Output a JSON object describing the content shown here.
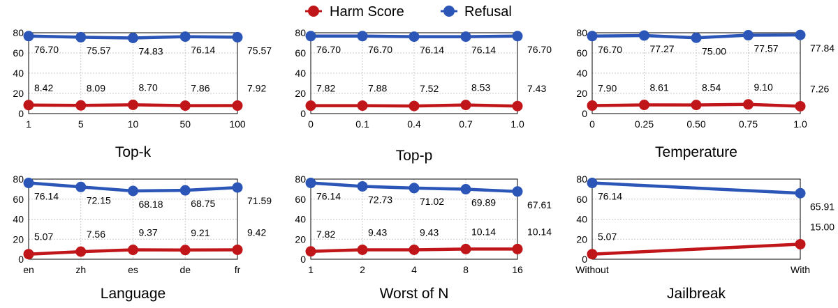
{
  "legend": {
    "items": [
      {
        "label": "Harm Score",
        "color": "#C0161A"
      },
      {
        "label": "Refusal",
        "color": "#2B56B8"
      }
    ]
  },
  "chart_data": [
    {
      "type": "line",
      "title": "Top-k",
      "categories": [
        "1",
        "5",
        "10",
        "50",
        "100"
      ],
      "series": [
        {
          "name": "Refusal",
          "color": "#2B56B8",
          "values": [
            76.7,
            75.57,
            74.83,
            76.14,
            75.57
          ],
          "labels": [
            "76.70",
            "75.57",
            "74.83",
            "76.14",
            "75.57"
          ]
        },
        {
          "name": "Harm Score",
          "color": "#C0161A",
          "values": [
            8.42,
            8.09,
            8.7,
            7.86,
            7.92
          ],
          "labels": [
            "8.42",
            "8.09",
            "8.70",
            "7.86",
            "7.92"
          ]
        }
      ],
      "ylim": [
        0,
        80
      ],
      "yticks": [
        "0",
        "20",
        "40",
        "60",
        "80"
      ],
      "grid": true
    },
    {
      "type": "line",
      "title": "Top-p",
      "categories": [
        "0",
        "0.1",
        "0.4",
        "0.7",
        "1.0"
      ],
      "series": [
        {
          "name": "Refusal",
          "color": "#2B56B8",
          "values": [
            76.7,
            76.7,
            76.14,
            76.14,
            76.7
          ],
          "labels": [
            "76.70",
            "76.70",
            "76.14",
            "76.14",
            "76.70"
          ]
        },
        {
          "name": "Harm Score",
          "color": "#C0161A",
          "values": [
            7.82,
            7.88,
            7.52,
            8.53,
            7.43
          ],
          "labels": [
            "7.82",
            "7.88",
            "7.52",
            "8.53",
            "7.43"
          ]
        }
      ],
      "ylim": [
        0,
        80
      ],
      "yticks": [
        "0",
        "20",
        "40",
        "60",
        "80"
      ],
      "grid": true
    },
    {
      "type": "line",
      "title": "Temperature",
      "categories": [
        "0",
        "0.25",
        "0.50",
        "0.75",
        "1.0"
      ],
      "series": [
        {
          "name": "Refusal",
          "color": "#2B56B8",
          "values": [
            76.7,
            77.27,
            75.0,
            77.57,
            77.84
          ],
          "labels": [
            "76.70",
            "77.27",
            "75.00",
            "77.57",
            "77.84"
          ]
        },
        {
          "name": "Harm Score",
          "color": "#C0161A",
          "values": [
            7.9,
            8.61,
            8.54,
            9.1,
            7.26
          ],
          "labels": [
            "7.90",
            "8.61",
            "8.54",
            "9.10",
            "7.26"
          ]
        }
      ],
      "ylim": [
        0,
        80
      ],
      "yticks": [
        "0",
        "20",
        "40",
        "60",
        "80"
      ],
      "grid": true
    },
    {
      "type": "line",
      "title": "Language",
      "categories": [
        "en",
        "zh",
        "es",
        "de",
        "fr"
      ],
      "series": [
        {
          "name": "Refusal",
          "color": "#2B56B8",
          "values": [
            76.14,
            72.15,
            68.18,
            68.75,
            71.59
          ],
          "labels": [
            "76.14",
            "72.15",
            "68.18",
            "68.75",
            "71.59"
          ]
        },
        {
          "name": "Harm Score",
          "color": "#C0161A",
          "values": [
            5.07,
            7.56,
            9.37,
            9.21,
            9.42
          ],
          "labels": [
            "5.07",
            "7.56",
            "9.37",
            "9.21",
            "9.42"
          ]
        }
      ],
      "ylim": [
        0,
        80
      ],
      "yticks": [
        "0",
        "20",
        "40",
        "60",
        "80"
      ],
      "grid": true
    },
    {
      "type": "line",
      "title": "Worst of N",
      "categories": [
        "1",
        "2",
        "4",
        "8",
        "16"
      ],
      "series": [
        {
          "name": "Refusal",
          "color": "#2B56B8",
          "values": [
            76.14,
            72.73,
            71.02,
            69.89,
            67.61
          ],
          "labels": [
            "76.14",
            "72.73",
            "71.02",
            "69.89",
            "67.61"
          ]
        },
        {
          "name": "Harm Score",
          "color": "#C0161A",
          "values": [
            7.82,
            9.43,
            9.43,
            10.14,
            10.14
          ],
          "labels": [
            "7.82",
            "9.43",
            "9.43",
            "10.14",
            "10.14"
          ]
        }
      ],
      "ylim": [
        0,
        80
      ],
      "yticks": [
        "0",
        "20",
        "40",
        "60",
        "80"
      ],
      "grid": true
    },
    {
      "type": "line",
      "title": "Jailbreak",
      "categories": [
        "Without",
        "With"
      ],
      "series": [
        {
          "name": "Refusal",
          "color": "#2B56B8",
          "values": [
            76.14,
            65.91
          ],
          "labels": [
            "76.14",
            "65.91"
          ]
        },
        {
          "name": "Harm Score",
          "color": "#C0161A",
          "values": [
            5.07,
            15.0
          ],
          "labels": [
            "5.07",
            "15.00"
          ]
        }
      ],
      "ylim": [
        0,
        80
      ],
      "yticks": [
        "0",
        "20",
        "40",
        "60",
        "80"
      ],
      "grid": true
    }
  ]
}
